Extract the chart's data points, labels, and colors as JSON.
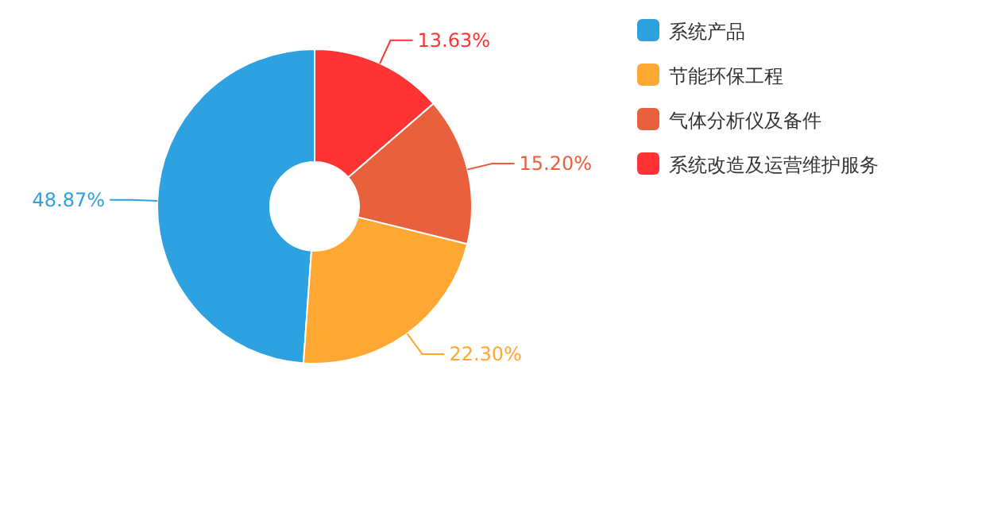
{
  "chart_data": {
    "type": "donut",
    "categories": [
      "系统产品",
      "节能环保工程",
      "气体分析仪及备件",
      "系统改造及运营维护服务"
    ],
    "values": [
      48.87,
      22.3,
      15.2,
      13.63
    ],
    "colors": [
      "#2ea1e0",
      "#ffa733",
      "#e8603c",
      "#ff3333"
    ],
    "value_labels": [
      "48.87%",
      "22.30%",
      "15.20%",
      "13.63%"
    ],
    "legend": "right"
  }
}
